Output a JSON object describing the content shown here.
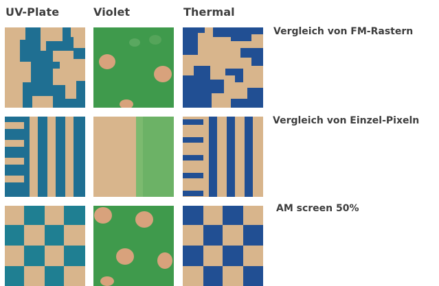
{
  "columns": [
    "UV-Plate",
    "Violet",
    "Thermal"
  ],
  "rows": [
    {
      "label": "Vergleich von FM-Rastern"
    },
    {
      "label": "Vergleich von Einzel-Pixeln"
    },
    {
      "label": "AM screen 50%"
    }
  ],
  "colors": {
    "beige": "#d8b58c",
    "uv_blue": "#1f6f92",
    "green": "#3f9a4c",
    "thermal_blue": "#214f93",
    "light_green": "#70b468"
  }
}
